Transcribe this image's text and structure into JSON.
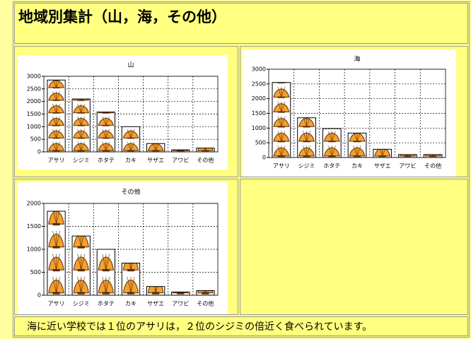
{
  "header": {
    "title": "地域別集計（山，海，その他）"
  },
  "chart_data": [
    {
      "type": "bar",
      "title": "山",
      "categories": [
        "アサリ",
        "シジミ",
        "ホタテ",
        "カキ",
        "サザエ",
        "アワビ",
        "その他"
      ],
      "values": [
        2850,
        2100,
        1580,
        1000,
        330,
        80,
        150
      ],
      "color": "#f7a030",
      "ylim": [
        0,
        3000
      ],
      "yticks": [
        0,
        500,
        1000,
        1500,
        2000,
        2500,
        3000
      ],
      "grid": true
    },
    {
      "type": "bar",
      "title": "海",
      "categories": [
        "アサリ",
        "シジミ",
        "ホタテ",
        "カキ",
        "サザエ",
        "アワビ",
        "その他"
      ],
      "values": [
        2550,
        1350,
        980,
        830,
        280,
        100,
        100
      ],
      "color": "#f7a030",
      "ylim": [
        0,
        3000
      ],
      "yticks": [
        0,
        500,
        1000,
        1500,
        2000,
        2500,
        3000
      ],
      "grid": true
    },
    {
      "type": "bar",
      "title": "その他",
      "categories": [
        "アサリ",
        "シジミ",
        "ホタテ",
        "カキ",
        "サザエ",
        "アワビ",
        "その他"
      ],
      "values": [
        1830,
        1290,
        1000,
        700,
        190,
        70,
        100
      ],
      "color": "#f7a030",
      "ylim": [
        0,
        2000
      ],
      "yticks": [
        0,
        500,
        1000,
        1500,
        2000
      ],
      "grid": true
    }
  ],
  "footer": {
    "text": "海に近い学校では１位のアサリは，２位のシジミの倍近く食べられています。"
  }
}
